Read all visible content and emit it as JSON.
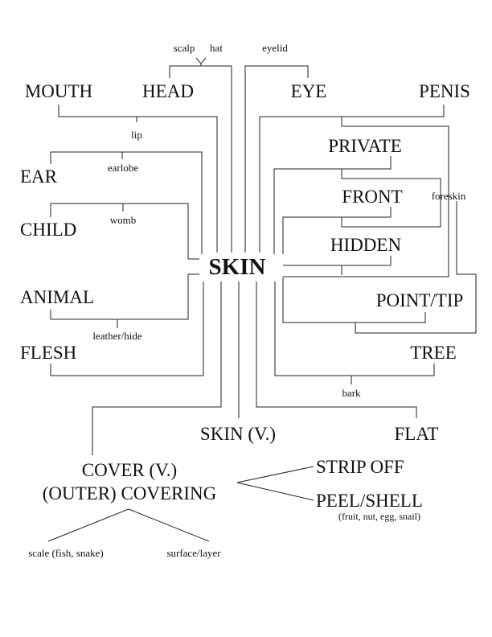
{
  "center": "SKIN",
  "concepts": {
    "mouth": "MOUTH",
    "head": "HEAD",
    "eye": "EYE",
    "penis": "PENIS",
    "private": "PRIVATE",
    "ear": "EAR",
    "front": "FRONT",
    "child": "CHILD",
    "hidden": "HIDDEN",
    "animal": "ANIMAL",
    "point_tip": "POINT/TIP",
    "flesh": "FLESH",
    "tree": "TREE",
    "skin_v": "SKIN (V.)",
    "flat": "FLAT",
    "cover_v": "COVER (V.)",
    "outer_covering": "(OUTER) COVERING",
    "strip_off": "STRIP OFF",
    "peel_shell": "PEEL/SHELL"
  },
  "minor_labels": {
    "scalp": "scalp",
    "hat": "hat",
    "eyelid": "eyelid",
    "lip": "lip",
    "earlobe": "earlobe",
    "womb": "womb",
    "foreskin": "foreskin",
    "leather_hide": "leather/hide",
    "bark": "bark",
    "peel_note": "(fruit, nut, egg, snail)",
    "scale": "scale (fish, snake)",
    "surface_layer": "surface/layer"
  }
}
